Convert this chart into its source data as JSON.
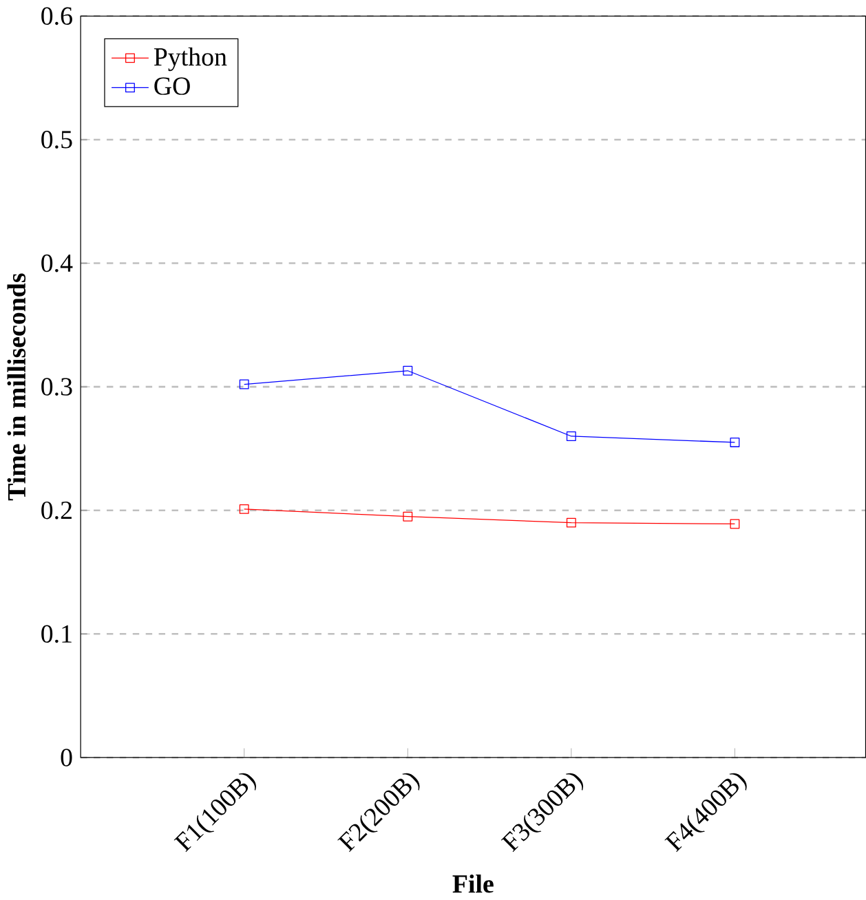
{
  "chart_data": {
    "type": "line",
    "xlabel": "File",
    "ylabel": "Time in milliseconds",
    "categories": [
      "F1(100B)",
      "F2(200B)",
      "F3(300B)",
      "F4(400B)"
    ],
    "series": [
      {
        "name": "Python",
        "color": "#ff0000",
        "values": [
          0.201,
          0.195,
          0.19,
          0.189
        ]
      },
      {
        "name": "GO",
        "color": "#0000ff",
        "values": [
          0.302,
          0.313,
          0.26,
          0.255
        ]
      }
    ],
    "ylim": [
      0,
      0.6
    ],
    "yticks": [
      0,
      0.1,
      0.2,
      0.3,
      0.4,
      0.5,
      0.6
    ],
    "grid": "y",
    "legend": "top left",
    "marker": "square",
    "line_style": "solid"
  }
}
